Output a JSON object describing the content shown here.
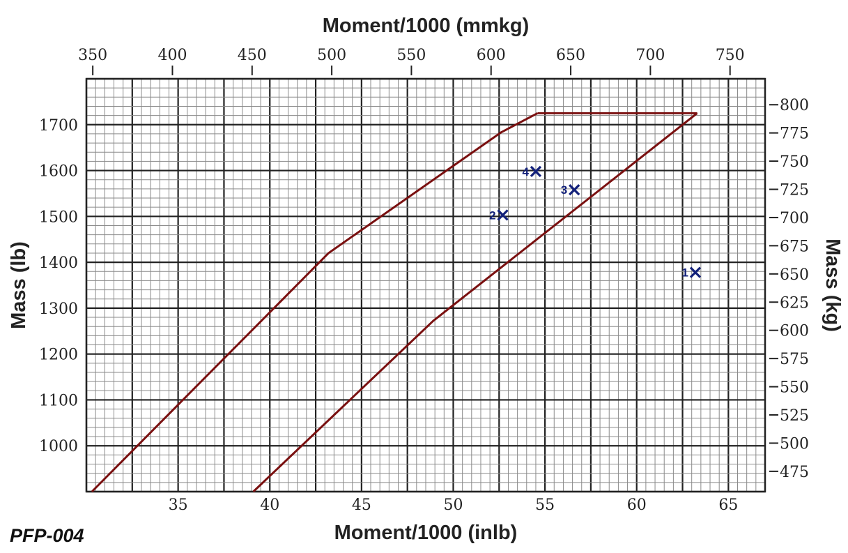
{
  "chart_data": {
    "type": "line",
    "code_label": "PFP-004",
    "top_xlabel": "Moment/1000 (mmkg)",
    "bottom_xlabel": "Moment/1000 (inlb)",
    "left_ylabel": "Mass (lb)",
    "right_ylabel": "Mass (kg)",
    "xlim": [
      30,
      67
    ],
    "ylim": [
      900,
      1800
    ],
    "top_xlim_mmkg": [
      346,
      772
    ],
    "right_ylim_kg": [
      457,
      823
    ],
    "grid": true,
    "bottom_ticks": [
      35,
      40,
      45,
      50,
      55,
      60,
      65
    ],
    "top_ticks": [
      350,
      400,
      450,
      500,
      550,
      600,
      650,
      700,
      750
    ],
    "left_ticks": [
      1000,
      1100,
      1200,
      1300,
      1400,
      1500,
      1600,
      1700
    ],
    "right_ticks": [
      475,
      500,
      525,
      550,
      575,
      600,
      625,
      650,
      675,
      700,
      725,
      750,
      775,
      800
    ],
    "envelope_color": "#7a1010",
    "point_color": "#12207a",
    "envelope": {
      "forward_limit": [
        [
          30.3,
          900
        ],
        [
          43.2,
          1420
        ],
        [
          52.6,
          1683
        ],
        [
          54.6,
          1725
        ]
      ],
      "max_mass": [
        [
          54.6,
          1725
        ],
        [
          63.3,
          1725
        ]
      ],
      "aft_limit": [
        [
          39.1,
          900
        ],
        [
          48.9,
          1272
        ],
        [
          63.3,
          1725
        ]
      ]
    },
    "points": [
      {
        "label": "1",
        "x": 63.2,
        "y": 1378
      },
      {
        "label": "2",
        "x": 52.7,
        "y": 1503
      },
      {
        "label": "3",
        "x": 56.6,
        "y": 1558
      },
      {
        "label": "4",
        "x": 54.5,
        "y": 1598
      }
    ]
  }
}
